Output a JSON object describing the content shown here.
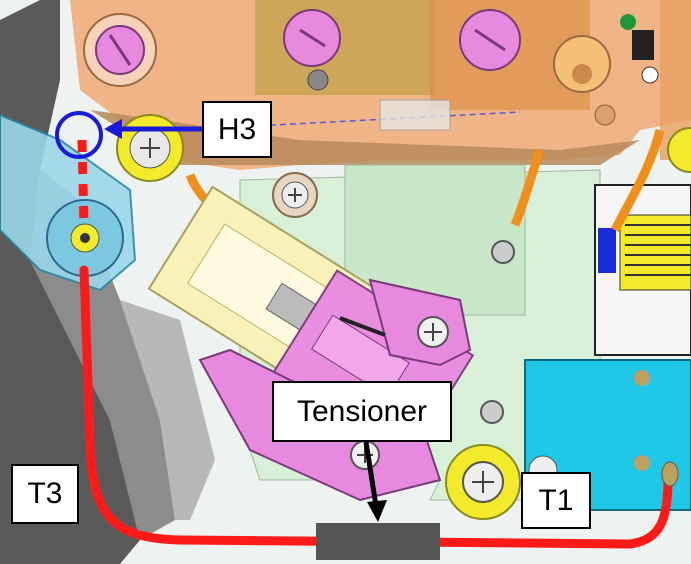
{
  "labels": {
    "h3": "H3",
    "tensioner": "Tensioner",
    "t3": "T3",
    "t1": "T1"
  },
  "colors": {
    "belt_path": "#ff1a1a",
    "marker_circle": "#1a1ad8",
    "arrow_h3": "#1a1ad8",
    "tensioner_block": "#555555",
    "pink_parts": "#e889e0",
    "yellow_pulley": "#f2ea2a",
    "cyan_plate": "#20c8e8",
    "green_plate": "#d7f0d7",
    "orange_frame": "#f2a770"
  }
}
